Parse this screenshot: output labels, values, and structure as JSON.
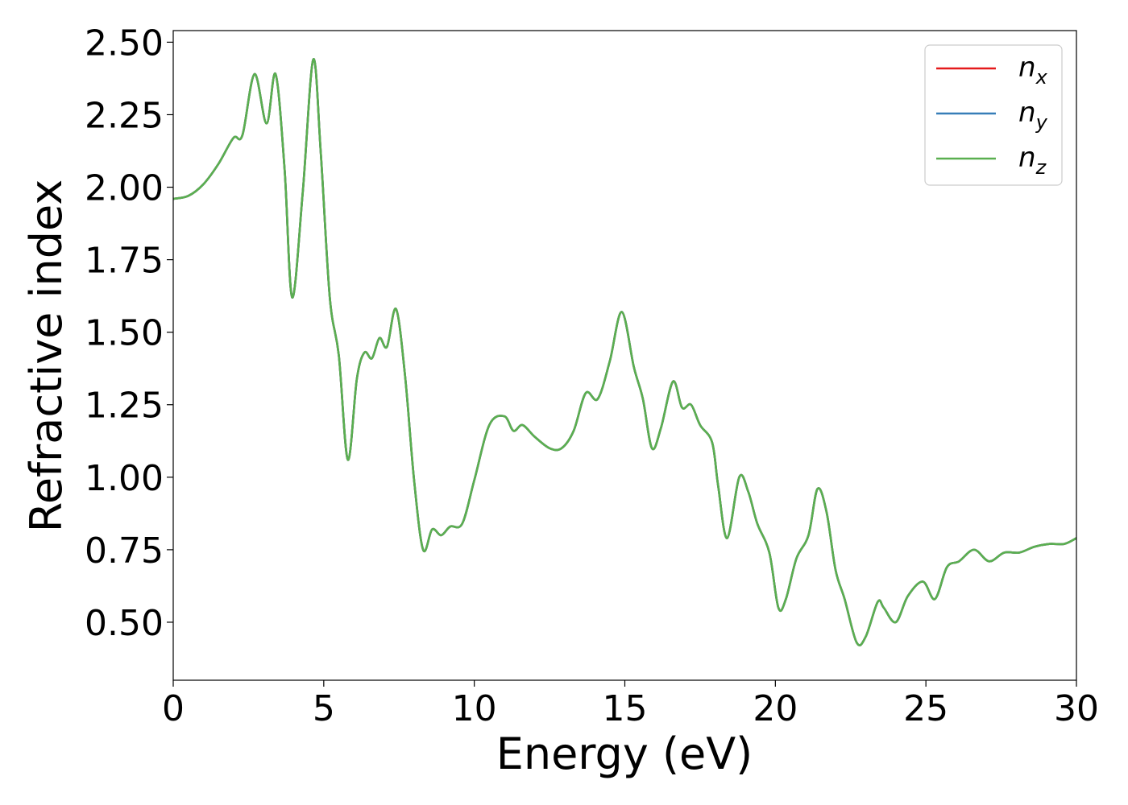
{
  "chart_data": {
    "type": "line",
    "xlabel": "Energy (eV)",
    "ylabel": "Refractive index",
    "xlim": [
      0,
      30
    ],
    "ylim": [
      0.3,
      2.54
    ],
    "x_ticks": [
      0,
      5,
      10,
      15,
      20,
      25,
      30
    ],
    "x_tick_labels": [
      "0",
      "5",
      "10",
      "15",
      "20",
      "25",
      "30"
    ],
    "y_ticks": [
      0.5,
      0.75,
      1.0,
      1.25,
      1.5,
      1.75,
      2.0,
      2.25,
      2.5
    ],
    "y_tick_labels": [
      "0.50",
      "0.75",
      "1.00",
      "1.25",
      "1.50",
      "1.75",
      "2.00",
      "2.25",
      "2.50"
    ],
    "grid": false,
    "legend_position": "top-right",
    "colors": {
      "nx": "#e41a1c",
      "ny": "#377eb8",
      "nz": "#5aaf50"
    },
    "x": [
      0,
      0.5,
      1.0,
      1.5,
      2.0,
      2.3,
      2.7,
      3.1,
      3.4,
      3.7,
      3.95,
      4.3,
      4.65,
      4.9,
      5.2,
      5.5,
      5.8,
      6.1,
      6.35,
      6.6,
      6.85,
      7.1,
      7.4,
      7.7,
      8.0,
      8.3,
      8.6,
      8.9,
      9.2,
      9.6,
      10.0,
      10.5,
      11.0,
      11.3,
      11.6,
      12.0,
      12.5,
      12.9,
      13.3,
      13.7,
      14.1,
      14.5,
      14.9,
      15.3,
      15.6,
      15.9,
      16.2,
      16.6,
      16.9,
      17.2,
      17.5,
      17.9,
      18.1,
      18.4,
      18.8,
      19.1,
      19.4,
      19.8,
      20.1,
      20.35,
      20.7,
      21.1,
      21.4,
      21.7,
      22.0,
      22.3,
      22.7,
      23.0,
      23.4,
      23.6,
      24.0,
      24.4,
      24.9,
      25.3,
      25.7,
      26.1,
      26.6,
      27.1,
      27.6,
      28.1,
      28.6,
      29.1,
      29.6,
      30.0
    ],
    "series": [
      {
        "name": "n",
        "sub": "x",
        "values": [
          1.96,
          1.97,
          2.01,
          2.08,
          2.17,
          2.18,
          2.39,
          2.22,
          2.39,
          2.06,
          1.62,
          1.98,
          2.44,
          2.12,
          1.62,
          1.42,
          1.06,
          1.34,
          1.43,
          1.41,
          1.48,
          1.45,
          1.58,
          1.35,
          0.99,
          0.75,
          0.82,
          0.8,
          0.83,
          0.84,
          0.99,
          1.18,
          1.21,
          1.16,
          1.18,
          1.14,
          1.1,
          1.1,
          1.16,
          1.29,
          1.27,
          1.4,
          1.57,
          1.38,
          1.27,
          1.1,
          1.17,
          1.33,
          1.24,
          1.25,
          1.18,
          1.12,
          0.97,
          0.79,
          1.0,
          0.95,
          0.84,
          0.74,
          0.55,
          0.58,
          0.72,
          0.8,
          0.96,
          0.88,
          0.68,
          0.58,
          0.43,
          0.45,
          0.57,
          0.55,
          0.5,
          0.59,
          0.64,
          0.58,
          0.69,
          0.71,
          0.75,
          0.71,
          0.74,
          0.74,
          0.76,
          0.77,
          0.77,
          0.79
        ]
      },
      {
        "name": "n",
        "sub": "y",
        "values": [
          1.96,
          1.97,
          2.01,
          2.08,
          2.17,
          2.18,
          2.39,
          2.22,
          2.39,
          2.06,
          1.62,
          1.98,
          2.44,
          2.12,
          1.62,
          1.42,
          1.06,
          1.34,
          1.43,
          1.41,
          1.48,
          1.45,
          1.58,
          1.35,
          0.99,
          0.75,
          0.82,
          0.8,
          0.83,
          0.84,
          0.99,
          1.18,
          1.21,
          1.16,
          1.18,
          1.14,
          1.1,
          1.1,
          1.16,
          1.29,
          1.27,
          1.4,
          1.57,
          1.38,
          1.27,
          1.1,
          1.17,
          1.33,
          1.24,
          1.25,
          1.18,
          1.12,
          0.97,
          0.79,
          1.0,
          0.95,
          0.84,
          0.74,
          0.55,
          0.58,
          0.72,
          0.8,
          0.96,
          0.88,
          0.68,
          0.58,
          0.43,
          0.45,
          0.57,
          0.55,
          0.5,
          0.59,
          0.64,
          0.58,
          0.69,
          0.71,
          0.75,
          0.71,
          0.74,
          0.74,
          0.76,
          0.77,
          0.77,
          0.79
        ]
      },
      {
        "name": "n",
        "sub": "z",
        "values": [
          1.96,
          1.97,
          2.01,
          2.08,
          2.17,
          2.18,
          2.39,
          2.22,
          2.39,
          2.06,
          1.62,
          1.98,
          2.44,
          2.12,
          1.62,
          1.42,
          1.06,
          1.34,
          1.43,
          1.41,
          1.48,
          1.45,
          1.58,
          1.35,
          0.99,
          0.75,
          0.82,
          0.8,
          0.83,
          0.84,
          0.99,
          1.18,
          1.21,
          1.16,
          1.18,
          1.14,
          1.1,
          1.1,
          1.16,
          1.29,
          1.27,
          1.4,
          1.57,
          1.38,
          1.27,
          1.1,
          1.17,
          1.33,
          1.24,
          1.25,
          1.18,
          1.12,
          0.97,
          0.79,
          1.0,
          0.95,
          0.84,
          0.74,
          0.55,
          0.58,
          0.72,
          0.8,
          0.96,
          0.88,
          0.68,
          0.58,
          0.43,
          0.45,
          0.57,
          0.55,
          0.5,
          0.59,
          0.64,
          0.58,
          0.69,
          0.71,
          0.75,
          0.71,
          0.74,
          0.74,
          0.76,
          0.77,
          0.77,
          0.79
        ]
      }
    ]
  }
}
